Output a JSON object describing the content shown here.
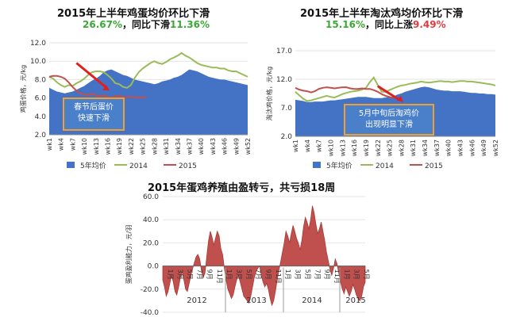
{
  "chart_data": [
    {
      "type": "area",
      "title": "2015年上半年鸡蛋均价环比下滑",
      "subtitle": {
        "a": "26.67%",
        "b": "，同比下滑",
        "c": "11.36%"
      },
      "ylabel": "鸡蛋价格，元/kg",
      "ylim": [
        2.0,
        12.0
      ],
      "yticks": [
        2.0,
        4.0,
        6.0,
        8.0,
        10.0,
        12.0
      ],
      "xticks": [
        "wk1",
        "wk4",
        "wk7",
        "wk10",
        "wk13",
        "wk16",
        "wk19",
        "wk22",
        "wk25",
        "wk28",
        "wk31",
        "wk34",
        "wk37",
        "wk40",
        "wk43",
        "wk46",
        "wk49",
        "wk52"
      ],
      "annotation": [
        "春节后蛋价",
        "快速下滑"
      ],
      "legend": [
        "5年均价",
        "2014",
        "2015"
      ],
      "series": [
        {
          "name": "5年均价",
          "color": "#4472c4",
          "values": [
            7.1,
            6.9,
            6.7,
            6.6,
            6.5,
            6.6,
            6.7,
            6.9,
            7.1,
            7.3,
            7.6,
            7.9,
            8.1,
            8.4,
            8.8,
            9.0,
            9.1,
            8.9,
            8.7,
            8.5,
            8.4,
            8.2,
            8.0,
            7.9,
            7.8,
            7.7,
            7.6,
            7.5,
            7.6,
            7.8,
            7.9,
            8.0,
            8.2,
            8.3,
            8.5,
            8.8,
            9.1,
            9.0,
            8.9,
            8.7,
            8.5,
            8.3,
            8.2,
            8.1,
            8.0,
            8.0,
            7.9,
            7.8,
            7.7,
            7.6,
            7.5,
            7.4
          ]
        },
        {
          "name": "2014",
          "color": "#9bbb59",
          "values": [
            8.3,
            8.1,
            7.7,
            7.4,
            7.2,
            7.4,
            7.3,
            7.6,
            7.8,
            8.1,
            8.5,
            8.8,
            8.9,
            8.9,
            8.8,
            8.5,
            8.1,
            7.6,
            7.5,
            7.2,
            7.1,
            7.4,
            8.2,
            8.8,
            9.2,
            9.5,
            9.8,
            10.0,
            9.8,
            9.7,
            9.9,
            10.2,
            10.4,
            10.6,
            10.9,
            10.6,
            10.4,
            10.1,
            9.8,
            9.6,
            9.5,
            9.4,
            9.3,
            9.3,
            9.2,
            9.2,
            9.0,
            8.9,
            8.9,
            8.7,
            8.5,
            8.3
          ]
        },
        {
          "name": "2015",
          "color": "#c0504d",
          "values": [
            8.3,
            8.4,
            8.4,
            8.3,
            8.1,
            7.7,
            7.2,
            6.8,
            6.5,
            6.4,
            6.3,
            6.5,
            6.3,
            6.2,
            6.3,
            6.1,
            6.0,
            6.2,
            6.2,
            6.1,
            6.1,
            6.1,
            6.1,
            6.0,
            6.1,
            6.1
          ]
        }
      ]
    },
    {
      "type": "area",
      "title": "2015年上半年淘汰鸡均价环比下滑",
      "subtitle": {
        "a": "15.16%",
        "b": "，同比上涨",
        "c": "9.49%"
      },
      "ylabel": "淘汰鸡价格，元/kg",
      "ylim": [
        2.0,
        17.0
      ],
      "yticks": [
        2.0,
        7.0,
        12.0,
        17.0
      ],
      "xticks": [
        "wk1",
        "wk4",
        "wk7",
        "wk10",
        "wk13",
        "wk16",
        "wk19",
        "wk22",
        "wk25",
        "wk28",
        "wk31",
        "wk34",
        "wk37",
        "wk40",
        "wk43",
        "wk46",
        "wk49",
        "wk52"
      ],
      "annotation": [
        "5月中旬后淘鸡价",
        "出现明显下滑"
      ],
      "legend": [
        "5年均价",
        "2014",
        "2015"
      ],
      "series": [
        {
          "name": "5年均价",
          "color": "#4472c4",
          "values": [
            8.4,
            8.3,
            8.2,
            8.0,
            8.0,
            8.1,
            8.1,
            8.1,
            8.2,
            8.3,
            8.3,
            8.4,
            8.5,
            8.6,
            8.7,
            8.8,
            8.9,
            8.9,
            8.9,
            8.8,
            8.7,
            8.7,
            8.7,
            8.8,
            8.9,
            9.0,
            9.3,
            9.5,
            9.8,
            10.0,
            10.2,
            10.4,
            10.6,
            10.7,
            10.6,
            10.4,
            10.2,
            10.1,
            10.0,
            10.0,
            9.9,
            9.9,
            9.9,
            9.8,
            9.7,
            9.6,
            9.6,
            9.5,
            9.5,
            9.4,
            9.4,
            9.3
          ]
        },
        {
          "name": "2014",
          "color": "#9bbb59",
          "values": [
            9.8,
            9.2,
            8.6,
            8.2,
            8.3,
            8.5,
            8.7,
            8.9,
            9.1,
            8.9,
            8.8,
            9.1,
            9.4,
            9.6,
            9.8,
            9.9,
            10.0,
            10.2,
            10.5,
            11.5,
            12.3,
            11.0,
            9.8,
            9.8,
            10.1,
            10.4,
            10.7,
            10.9,
            11.0,
            11.2,
            11.3,
            11.4,
            11.6,
            11.5,
            11.4,
            11.5,
            11.6,
            11.7,
            11.6,
            11.6,
            11.5,
            11.6,
            11.7,
            11.7,
            11.6,
            11.6,
            11.5,
            11.4,
            11.3,
            11.2,
            11.1,
            10.9
          ]
        },
        {
          "name": "2015",
          "color": "#c0504d",
          "values": [
            10.5,
            10.2,
            10.0,
            9.9,
            9.7,
            9.9,
            10.3,
            10.5,
            10.6,
            10.5,
            10.4,
            10.5,
            10.6,
            10.6,
            10.4,
            10.3,
            10.3,
            10.4,
            10.3,
            10.3,
            10.1,
            9.8,
            9.4,
            9.1,
            8.9,
            8.7
          ]
        }
      ]
    },
    {
      "type": "area",
      "title": "2015年蛋鸡养殖由盈转亏，共亏损18周",
      "ylabel": "蛋鸡盈利能力，元/羽",
      "ylim": [
        -40.0,
        60.0
      ],
      "yticks": [
        -40.0,
        -20.0,
        0.0,
        20.0,
        40.0,
        60.0
      ],
      "xticks": [
        "1月",
        "3月",
        "5月",
        "7月",
        "9月",
        "11月",
        "1月",
        "3月",
        "5月",
        "7月",
        "9月",
        "11月",
        "1月",
        "3月",
        "5月",
        "7月",
        "9月",
        "11月",
        "1月",
        "3月",
        "5月"
      ],
      "years": [
        "2012",
        "2013",
        "2014",
        "2015"
      ],
      "series": [
        {
          "name": "",
          "color": "#c0504d",
          "values": [
            -12,
            -18,
            -26,
            -22,
            -15,
            -8,
            -14,
            -22,
            -25,
            -18,
            -10,
            -5,
            -12,
            -20,
            -22,
            -15,
            -8,
            -2,
            3,
            8,
            10,
            6,
            -4,
            -10,
            -6,
            8,
            22,
            30,
            25,
            18,
            24,
            30,
            26,
            15,
            10,
            -2,
            -12,
            -20,
            -24,
            -28,
            -25,
            -18,
            -12,
            -8,
            -14,
            -20,
            -26,
            -28,
            -30,
            -32,
            -26,
            -18,
            -10,
            -5,
            -2,
            0,
            -8,
            -14,
            -18,
            -15,
            -20,
            -28,
            -34,
            -30,
            -22,
            -12,
            -4,
            4,
            12,
            20,
            30,
            26,
            20,
            28,
            35,
            30,
            24,
            20,
            14,
            22,
            34,
            42,
            38,
            32,
            40,
            52,
            46,
            36,
            28,
            32,
            38,
            30,
            22,
            12,
            5,
            -3,
            -8,
            -2,
            6,
            2,
            -6,
            -14,
            -20,
            -24,
            -18,
            -22,
            -26,
            -22,
            -16,
            -20,
            -25,
            -28,
            -30,
            -26,
            -18,
            -14
          ]
        }
      ]
    }
  ]
}
